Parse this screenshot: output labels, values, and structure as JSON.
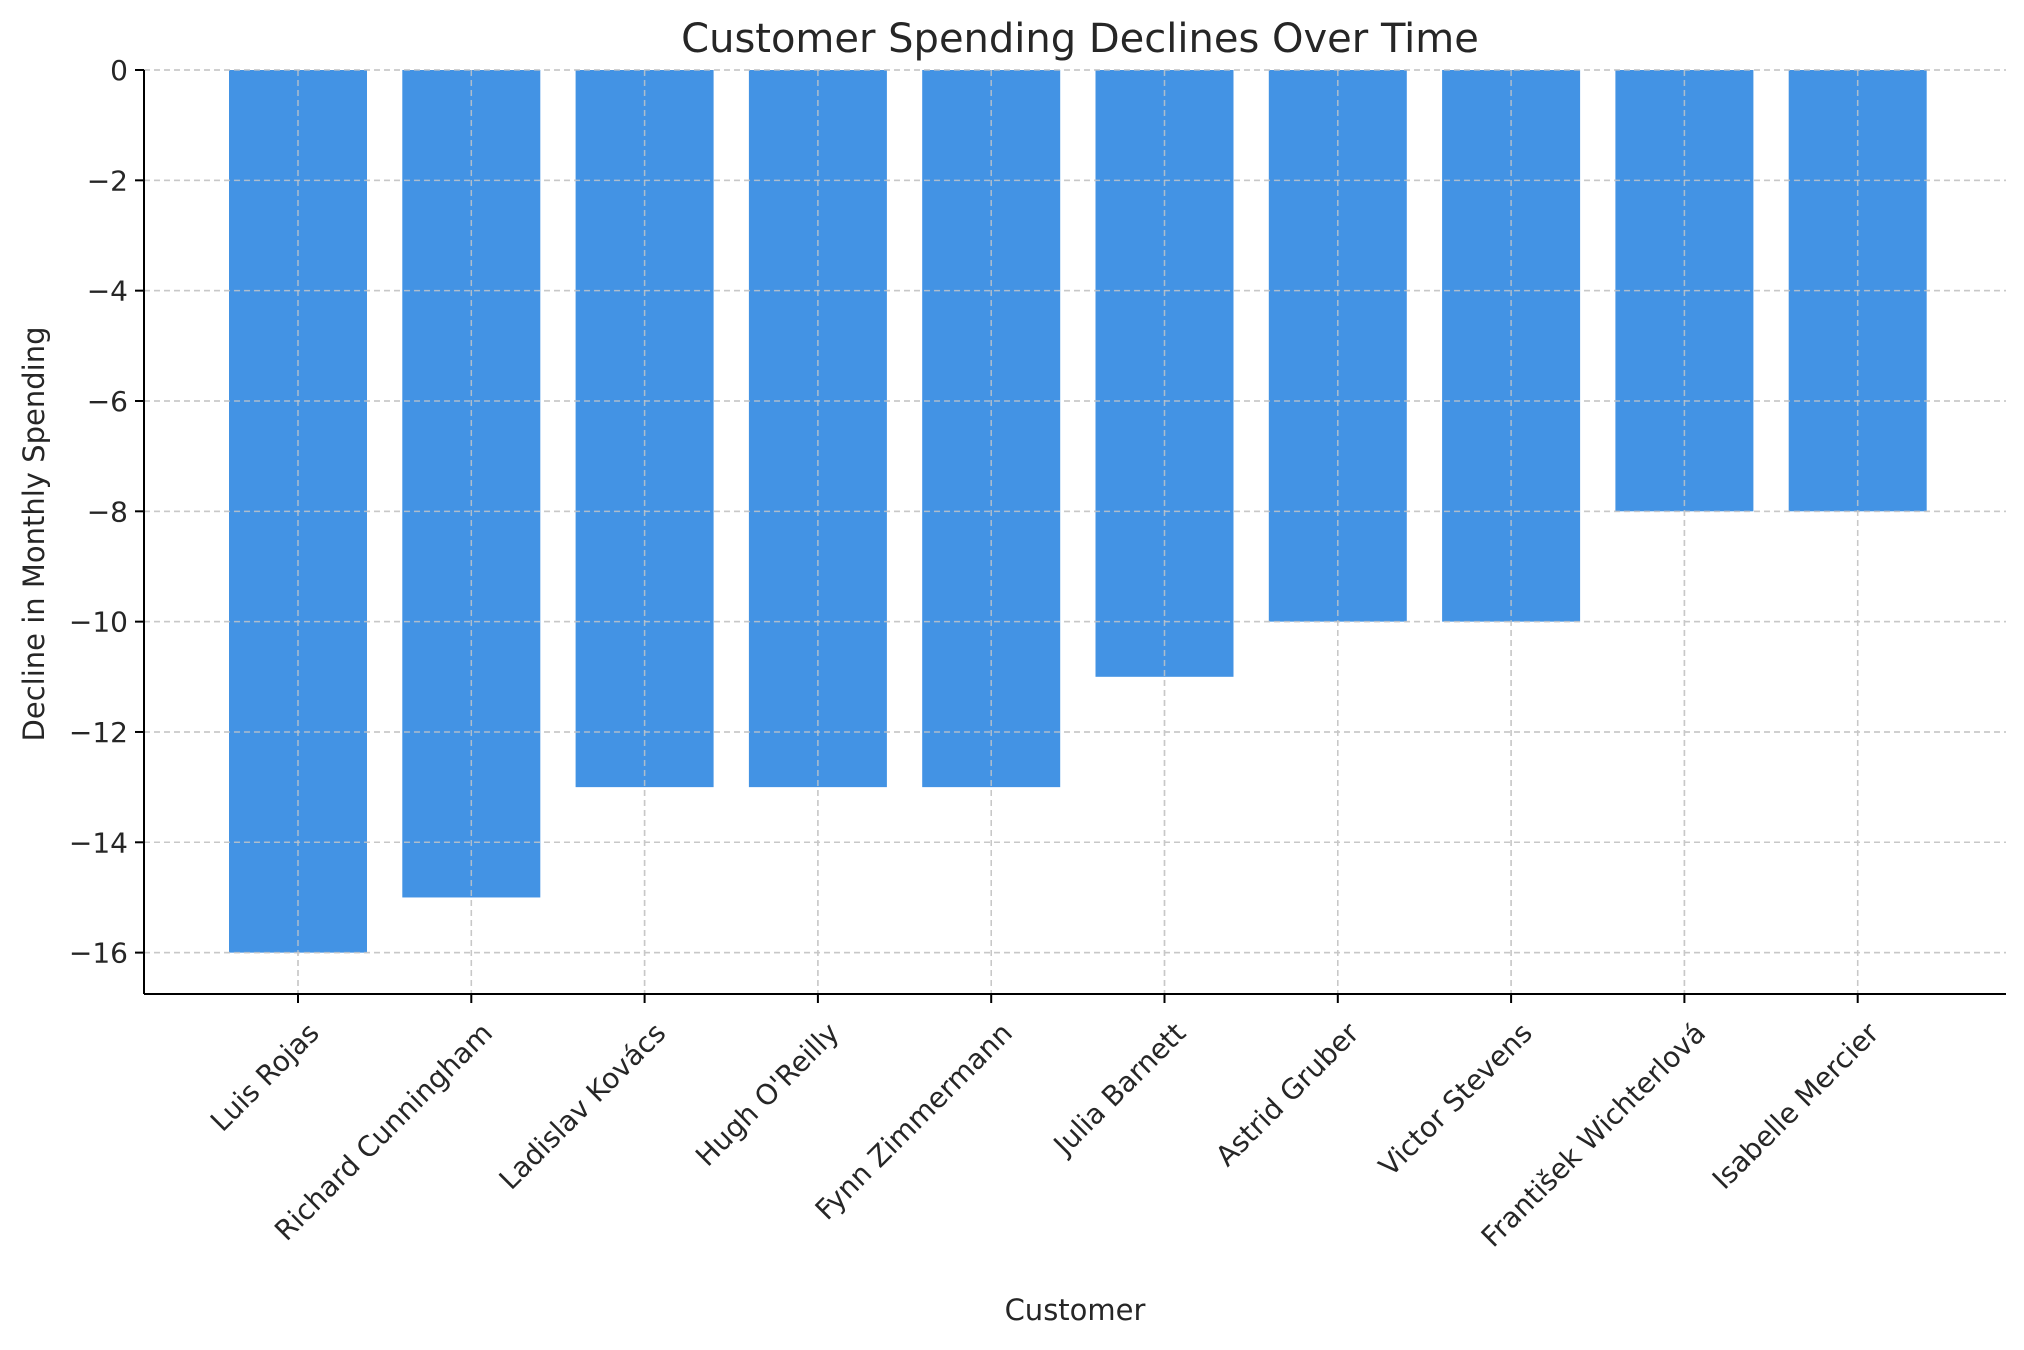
{
  "chart_data": {
    "type": "bar",
    "title": "Customer Spending Declines Over Time",
    "xlabel": "Customer",
    "ylabel": "Decline in Monthly Spending",
    "categories": [
      "Luis Rojas",
      "Richard Cunningham",
      "Ladislav Kovács",
      "Hugh O'Reilly",
      "Fynn Zimmermann",
      "Julia Barnett",
      "Astrid Gruber",
      "Victor Stevens",
      "František Wichterlová",
      "Isabelle Mercier"
    ],
    "values": [
      -16,
      -15,
      -13,
      -13,
      -13,
      -11,
      -10,
      -10,
      -8,
      -8
    ],
    "ylim": [
      -16.75,
      0
    ],
    "yticks": [
      0,
      -2,
      -4,
      -6,
      -8,
      -10,
      -12,
      -14,
      -16
    ],
    "ytick_labels": [
      "0",
      "−2",
      "−4",
      "−6",
      "−8",
      "−10",
      "−12",
      "−14",
      "−16"
    ],
    "grid": true,
    "bar_color": "#4393e4",
    "grid_color": "#c8c8c8"
  }
}
